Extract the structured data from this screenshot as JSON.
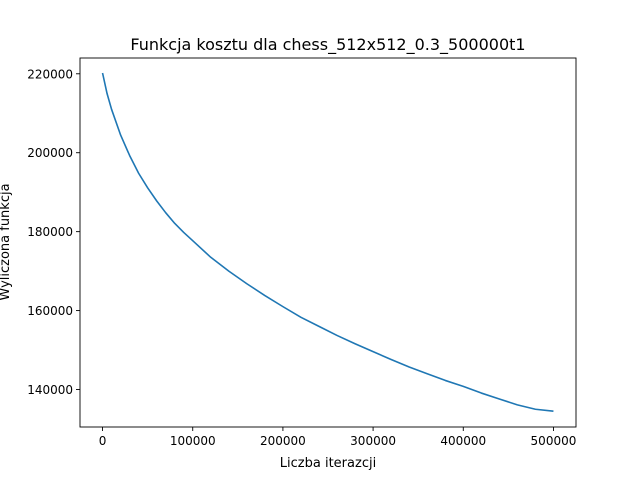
{
  "chart_data": {
    "type": "line",
    "title": "Funkcja kosztu dla chess_512x512_0.3_500000t1",
    "xlabel": "Liczba iterazcji",
    "ylabel": "Wyliczona funkcja",
    "xlim": [
      -25000,
      525000
    ],
    "ylim": [
      130500,
      224000
    ],
    "x_ticks": [
      0,
      100000,
      200000,
      300000,
      400000,
      500000
    ],
    "x_tick_labels": [
      "0",
      "100000",
      "200000",
      "300000",
      "400000",
      "500000"
    ],
    "y_ticks": [
      140000,
      160000,
      180000,
      200000,
      220000
    ],
    "y_tick_labels": [
      "140000",
      "160000",
      "180000",
      "200000",
      "220000"
    ],
    "grid": false,
    "series": [
      {
        "color": "#1f77b4",
        "x": [
          0,
          5000,
          10000,
          20000,
          30000,
          40000,
          50000,
          60000,
          70000,
          80000,
          90000,
          100000,
          120000,
          140000,
          160000,
          180000,
          200000,
          220000,
          240000,
          260000,
          280000,
          300000,
          320000,
          340000,
          360000,
          380000,
          400000,
          420000,
          440000,
          460000,
          480000,
          500000
        ],
        "y": [
          220200,
          215000,
          211000,
          204500,
          199300,
          194800,
          191100,
          187800,
          184800,
          182100,
          179800,
          177700,
          173500,
          170000,
          166800,
          163800,
          161000,
          158300,
          156000,
          153700,
          151600,
          149600,
          147600,
          145700,
          144000,
          142300,
          140800,
          139100,
          137600,
          136100,
          135000,
          134500
        ]
      }
    ]
  }
}
